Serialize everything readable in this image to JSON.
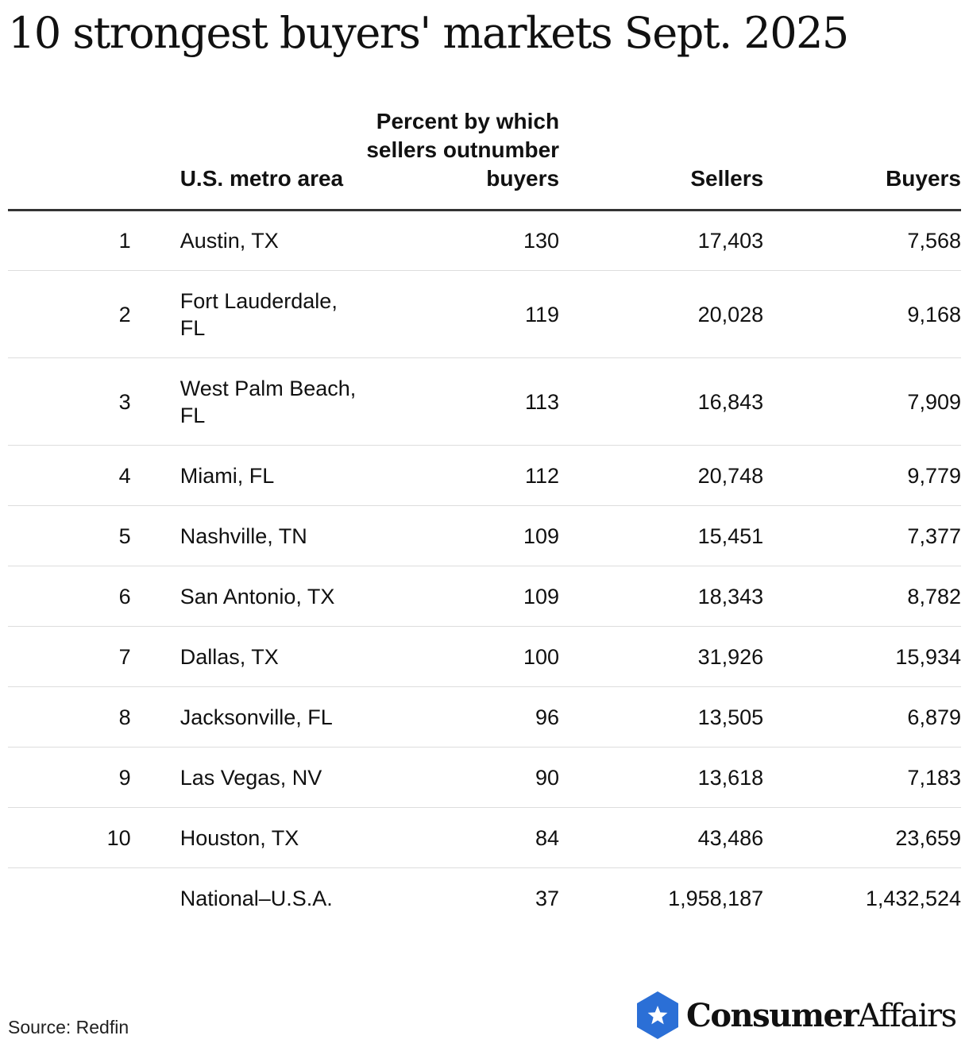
{
  "title": "10 strongest buyers' markets Sept. 2025",
  "chart_data": {
    "type": "table",
    "columns": [
      "",
      "U.S. metro area",
      "Percent by which sellers outnumber buyers",
      "Sellers",
      "Buyers"
    ],
    "rows": [
      {
        "rank": "1",
        "metro": "Austin, TX",
        "pct": "130",
        "sellers": "17,403",
        "buyers": "7,568"
      },
      {
        "rank": "2",
        "metro": "Fort Lauderdale, FL",
        "pct": "119",
        "sellers": "20,028",
        "buyers": "9,168"
      },
      {
        "rank": "3",
        "metro": "West Palm Beach, FL",
        "pct": "113",
        "sellers": "16,843",
        "buyers": "7,909"
      },
      {
        "rank": "4",
        "metro": "Miami, FL",
        "pct": "112",
        "sellers": "20,748",
        "buyers": "9,779"
      },
      {
        "rank": "5",
        "metro": "Nashville, TN",
        "pct": "109",
        "sellers": "15,451",
        "buyers": "7,377"
      },
      {
        "rank": "6",
        "metro": "San Antonio, TX",
        "pct": "109",
        "sellers": "18,343",
        "buyers": "8,782"
      },
      {
        "rank": "7",
        "metro": "Dallas, TX",
        "pct": "100",
        "sellers": "31,926",
        "buyers": "15,934"
      },
      {
        "rank": "8",
        "metro": "Jacksonville, FL",
        "pct": "96",
        "sellers": "13,505",
        "buyers": "6,879"
      },
      {
        "rank": "9",
        "metro": "Las Vegas, NV",
        "pct": "90",
        "sellers": "13,618",
        "buyers": "7,183"
      },
      {
        "rank": "10",
        "metro": "Houston, TX",
        "pct": "84",
        "sellers": "43,486",
        "buyers": "23,659"
      },
      {
        "rank": "",
        "metro": "National–U.S.A.",
        "pct": "37",
        "sellers": "1,958,187",
        "buyers": "1,432,524"
      }
    ]
  },
  "footer": {
    "source": "Source: Redfin",
    "logo_bold": "Consumer",
    "logo_regular": "Affairs",
    "logo_icon": "star-hexagon-icon",
    "logo_color": "#2b6fd6"
  }
}
